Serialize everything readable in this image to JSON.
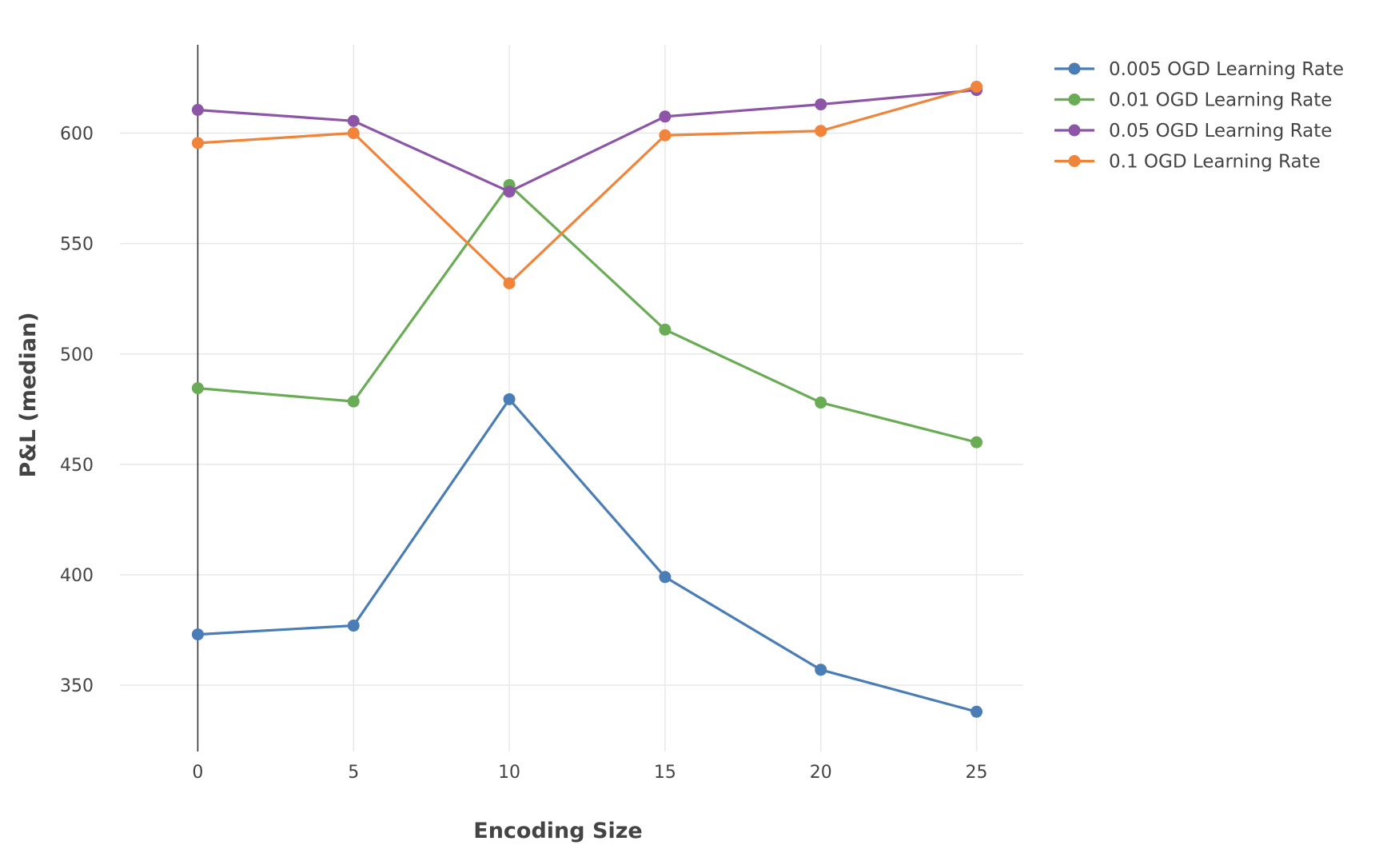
{
  "chart_data": {
    "type": "line",
    "x": [
      0,
      5,
      10,
      15,
      20,
      25
    ],
    "series": [
      {
        "name": "0.005 OGD Learning Rate",
        "color": "#4a7db5",
        "values": [
          373,
          377,
          479.5,
          399,
          357,
          338
        ]
      },
      {
        "name": "0.01 OGD Learning Rate",
        "color": "#6aab55",
        "values": [
          484.5,
          478.5,
          576.5,
          511,
          478,
          460
        ]
      },
      {
        "name": "0.05 OGD Learning Rate",
        "color": "#8d55a6",
        "values": [
          610.5,
          605.5,
          573.5,
          607.5,
          613,
          619.5
        ]
      },
      {
        "name": "0.1 OGD Learning Rate",
        "color": "#f0843a",
        "values": [
          595.5,
          600,
          532,
          599,
          601,
          621
        ]
      }
    ],
    "xlabel": "Encoding Size",
    "ylabel": "P&L (median)",
    "xticks": [
      "0",
      "5",
      "10",
      "15",
      "20",
      "25"
    ],
    "yticks": [
      "350",
      "400",
      "450",
      "500",
      "550",
      "600"
    ],
    "xlim": [
      -2.5,
      26.5
    ],
    "ylim": [
      320,
      640
    ],
    "grid": true,
    "legend_position": "top-right"
  }
}
